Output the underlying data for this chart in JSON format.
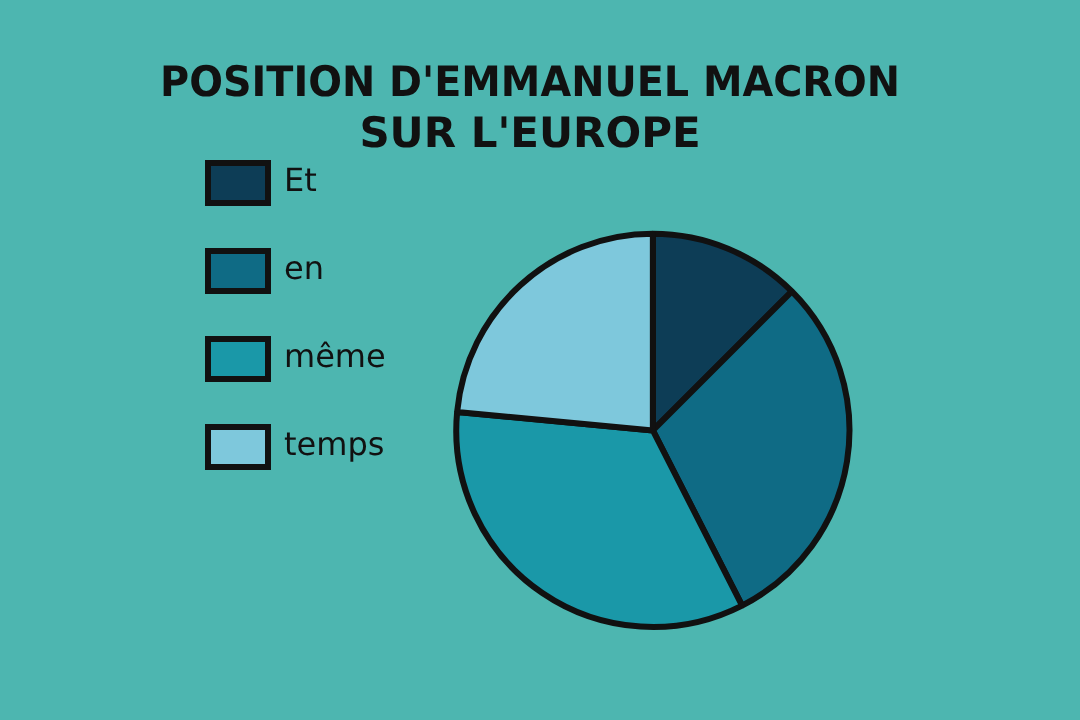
{
  "chart_data": {
    "type": "pie",
    "title": "POSITION D'EMMANUEL MACRON\nSUR L'EUROPE",
    "categories": [
      "Et",
      "en",
      "même",
      "temps"
    ],
    "values": [
      12.5,
      30,
      34,
      23.5
    ],
    "colors": [
      "#0d3d56",
      "#0f6b85",
      "#1a98a8",
      "#7ec8dc"
    ],
    "legend": "left"
  }
}
